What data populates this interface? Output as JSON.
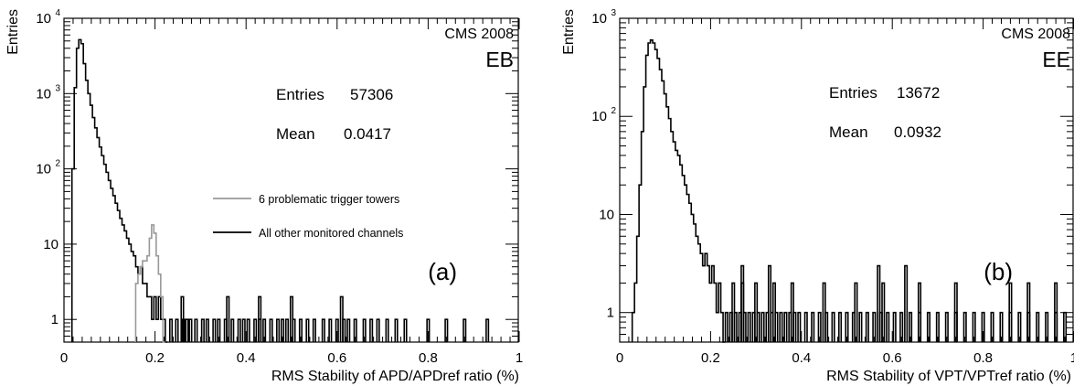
{
  "chart_data": [
    {
      "type": "histogram",
      "panel_label": "(a)",
      "experiment": "CMS 2008",
      "subdetector": "EB",
      "xlabel": "RMS Stability of APD/APDref ratio (%)",
      "ylabel": "Entries",
      "xlim": [
        0,
        1
      ],
      "ylim": [
        0.5,
        10000
      ],
      "y_scale": "log",
      "x_ticks": [
        {
          "v": 0,
          "label": "0"
        },
        {
          "v": 0.2,
          "label": "0.2"
        },
        {
          "v": 0.4,
          "label": "0.4"
        },
        {
          "v": 0.6,
          "label": "0.6"
        },
        {
          "v": 0.8,
          "label": "0.8"
        },
        {
          "v": 1,
          "label": "1"
        }
      ],
      "y_ticks": [
        {
          "v": 1,
          "label": "1"
        },
        {
          "v": 10,
          "label": "10"
        },
        {
          "v": 100,
          "label": "10",
          "exp": "2"
        },
        {
          "v": 1000,
          "label": "10",
          "exp": "3"
        },
        {
          "v": 10000,
          "label": "10",
          "exp": "4"
        }
      ],
      "stats": {
        "entries_label": "Entries",
        "entries": "57306",
        "mean_label": "Mean",
        "mean": "0.0417"
      },
      "legend": [
        {
          "label": "6 problematic trigger towers",
          "color": "#999999"
        },
        {
          "label": "All other monitored channels",
          "color": "#000000"
        }
      ],
      "series": [
        {
          "name": "All other monitored channels",
          "color": "#000000",
          "points": [
            [
              0.02,
              100
            ],
            [
              0.025,
              1200
            ],
            [
              0.03,
              4000
            ],
            [
              0.035,
              5200
            ],
            [
              0.04,
              4600
            ],
            [
              0.045,
              2500
            ],
            [
              0.05,
              1500
            ],
            [
              0.055,
              1000
            ],
            [
              0.06,
              700
            ],
            [
              0.065,
              480
            ],
            [
              0.07,
              350
            ],
            [
              0.075,
              260
            ],
            [
              0.08,
              195
            ],
            [
              0.085,
              150
            ],
            [
              0.09,
              115
            ],
            [
              0.095,
              90
            ],
            [
              0.1,
              70
            ],
            [
              0.105,
              55
            ],
            [
              0.11,
              44
            ],
            [
              0.115,
              35
            ],
            [
              0.12,
              28
            ],
            [
              0.125,
              22
            ],
            [
              0.13,
              18
            ],
            [
              0.135,
              15
            ],
            [
              0.14,
              12
            ],
            [
              0.145,
              10
            ],
            [
              0.15,
              8
            ],
            [
              0.155,
              7
            ],
            [
              0.16,
              5
            ],
            [
              0.165,
              4
            ],
            [
              0.17,
              5
            ],
            [
              0.175,
              3
            ],
            [
              0.18,
              3
            ],
            [
              0.185,
              2
            ],
            [
              0.19,
              2
            ],
            [
              0.195,
              1
            ],
            [
              0.2,
              2
            ],
            [
              0.205,
              1
            ],
            [
              0.21,
              2
            ],
            [
              0.215,
              1
            ],
            [
              0.22,
              1
            ],
            [
              0.225,
              0.5
            ]
          ]
        },
        {
          "name": "6 problematic trigger towers",
          "color": "#999999",
          "points": [
            [
              0.16,
              3
            ],
            [
              0.165,
              4
            ],
            [
              0.17,
              5
            ],
            [
              0.175,
              6
            ],
            [
              0.18,
              6
            ],
            [
              0.185,
              7
            ],
            [
              0.19,
              12
            ],
            [
              0.195,
              18
            ],
            [
              0.2,
              14
            ],
            [
              0.205,
              7
            ],
            [
              0.21,
              4
            ],
            [
              0.215,
              2
            ],
            [
              0.22,
              0.5
            ]
          ]
        }
      ],
      "tail": [
        0.235,
        0.248,
        0.262,
        0.27,
        0.278,
        0.29,
        0.305,
        0.315,
        0.33,
        0.34,
        0.355,
        0.37,
        0.385,
        0.395,
        0.405,
        0.42,
        0.43,
        0.44,
        0.455,
        0.47,
        0.48,
        0.49,
        0.505,
        0.52,
        0.535,
        0.55,
        0.57,
        0.585,
        0.6,
        0.615,
        0.625,
        0.64,
        0.66,
        0.675,
        0.69,
        0.71,
        0.73,
        0.75,
        0.8,
        0.84,
        0.88,
        0.93
      ],
      "tail_two": [
        0.26,
        0.36,
        0.43,
        0.5,
        0.61
      ]
    },
    {
      "type": "histogram",
      "panel_label": "(b)",
      "experiment": "CMS 2008",
      "subdetector": "EE",
      "xlabel": "RMS Stability of VPT/VPTref ratio (%)",
      "ylabel": "Entries",
      "xlim": [
        0,
        1
      ],
      "ylim": [
        0.5,
        1000
      ],
      "y_scale": "log",
      "x_ticks": [
        {
          "v": 0,
          "label": "0"
        },
        {
          "v": 0.2,
          "label": "0.2"
        },
        {
          "v": 0.4,
          "label": "0.4"
        },
        {
          "v": 0.6,
          "label": "0.6"
        },
        {
          "v": 0.8,
          "label": "0.8"
        },
        {
          "v": 1,
          "label": "1"
        }
      ],
      "y_ticks": [
        {
          "v": 1,
          "label": "1"
        },
        {
          "v": 10,
          "label": "10"
        },
        {
          "v": 100,
          "label": "10",
          "exp": "2"
        },
        {
          "v": 1000,
          "label": "10",
          "exp": "3"
        }
      ],
      "stats": {
        "entries_label": "Entries",
        "entries": "13672",
        "mean_label": "Mean",
        "mean": "0.0932"
      },
      "legend": [],
      "series": [
        {
          "name": "",
          "color": "#000000",
          "points": [
            [
              0.03,
              1
            ],
            [
              0.035,
              2
            ],
            [
              0.04,
              6
            ],
            [
              0.045,
              20
            ],
            [
              0.05,
              70
            ],
            [
              0.055,
              200
            ],
            [
              0.06,
              420
            ],
            [
              0.065,
              560
            ],
            [
              0.07,
              600
            ],
            [
              0.075,
              560
            ],
            [
              0.08,
              480
            ],
            [
              0.085,
              390
            ],
            [
              0.09,
              300
            ],
            [
              0.095,
              230
            ],
            [
              0.1,
              170
            ],
            [
              0.105,
              125
            ],
            [
              0.11,
              95
            ],
            [
              0.115,
              70
            ],
            [
              0.12,
              55
            ],
            [
              0.125,
              45
            ],
            [
              0.13,
              40
            ],
            [
              0.135,
              32
            ],
            [
              0.14,
              25
            ],
            [
              0.145,
              20
            ],
            [
              0.15,
              16
            ],
            [
              0.155,
              13
            ],
            [
              0.16,
              10
            ],
            [
              0.165,
              8
            ],
            [
              0.17,
              6
            ],
            [
              0.175,
              5
            ],
            [
              0.18,
              4
            ],
            [
              0.185,
              3
            ],
            [
              0.19,
              4
            ],
            [
              0.195,
              3
            ],
            [
              0.2,
              2
            ],
            [
              0.205,
              3
            ],
            [
              0.21,
              2
            ],
            [
              0.215,
              1
            ],
            [
              0.22,
              2
            ],
            [
              0.225,
              1
            ],
            [
              0.23,
              0.5
            ]
          ]
        }
      ],
      "tail": [
        0.235,
        0.245,
        0.255,
        0.265,
        0.275,
        0.285,
        0.295,
        0.305,
        0.315,
        0.325,
        0.335,
        0.345,
        0.355,
        0.365,
        0.375,
        0.385,
        0.395,
        0.41,
        0.425,
        0.44,
        0.455,
        0.47,
        0.485,
        0.5,
        0.515,
        0.53,
        0.545,
        0.56,
        0.575,
        0.59,
        0.605,
        0.62,
        0.64,
        0.66,
        0.68,
        0.7,
        0.72,
        0.74,
        0.76,
        0.78,
        0.8,
        0.82,
        0.84,
        0.86,
        0.88,
        0.9,
        0.92,
        0.94,
        0.96,
        0.98
      ],
      "tail_two": [
        0.25,
        0.27,
        0.3,
        0.34,
        0.38,
        0.45,
        0.52,
        0.58,
        0.66,
        0.74,
        0.86,
        0.9,
        0.96
      ],
      "tail_three": [
        0.27,
        0.33,
        0.57,
        0.63
      ]
    }
  ]
}
